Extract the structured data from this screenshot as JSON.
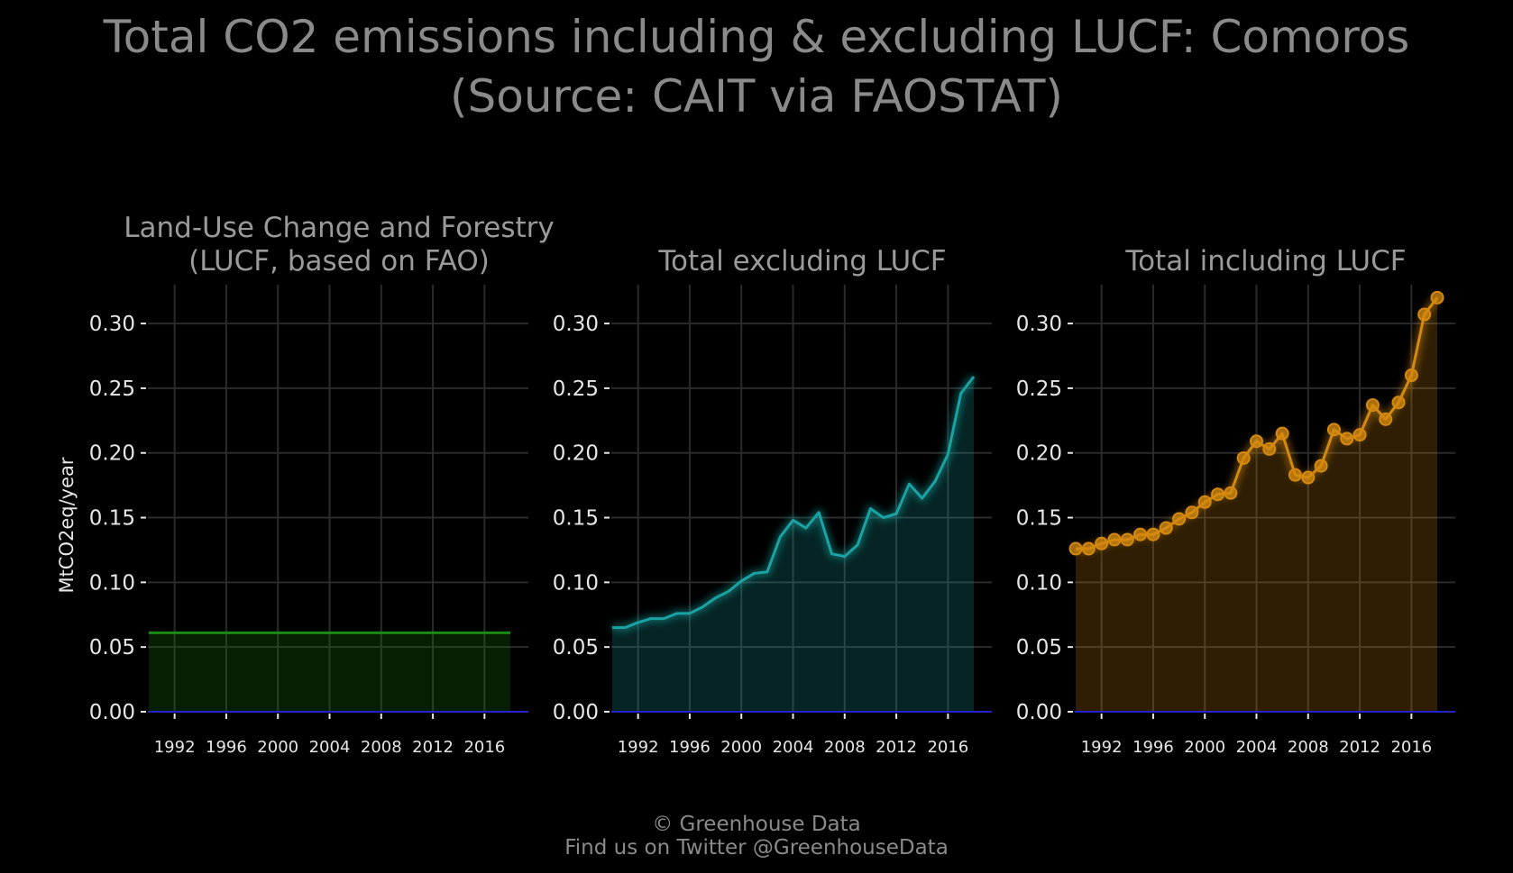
{
  "title": {
    "line1": "Total CO2 emissions including & excluding LUCF: Comoros",
    "line2": "(Source: CAIT via FAOSTAT)"
  },
  "footer": {
    "line1": "© Greenhouse Data",
    "line2": "Find us on Twitter @GreenhouseData"
  },
  "colors": {
    "background": "#000000",
    "lucf": "#1a8a12",
    "excl": "#1aa3a3",
    "incl": "#d4890f",
    "zero_line": "#2323c8"
  },
  "chart_data": [
    {
      "type": "area",
      "title_line1": "Land-Use Change and Forestry",
      "title_line2": "(LUCF, based on FAO)",
      "ylabel": "MtCO2eq/year",
      "ylim": [
        0,
        0.33
      ],
      "xlim": [
        1990,
        2018
      ],
      "yticks": [
        "0.00",
        "0.05",
        "0.10",
        "0.15",
        "0.20",
        "0.25",
        "0.30"
      ],
      "xticks": [
        "1992",
        "1996",
        "2000",
        "2004",
        "2008",
        "2012",
        "2016"
      ],
      "grid": true,
      "color": "#1a8a12",
      "markers": false,
      "x": [
        1990,
        1991,
        1992,
        1993,
        1994,
        1995,
        1996,
        1997,
        1998,
        1999,
        2000,
        2001,
        2002,
        2003,
        2004,
        2005,
        2006,
        2007,
        2008,
        2009,
        2010,
        2011,
        2012,
        2013,
        2014,
        2015,
        2016,
        2017,
        2018
      ],
      "values": [
        0.061,
        0.061,
        0.061,
        0.061,
        0.061,
        0.061,
        0.061,
        0.061,
        0.061,
        0.061,
        0.061,
        0.061,
        0.061,
        0.061,
        0.061,
        0.061,
        0.061,
        0.061,
        0.061,
        0.061,
        0.061,
        0.061,
        0.061,
        0.061,
        0.061,
        0.061,
        0.061,
        0.061,
        0.061
      ]
    },
    {
      "type": "area",
      "title_line1": "",
      "title_line2": "Total excluding LUCF",
      "ylabel": "",
      "ylim": [
        0,
        0.33
      ],
      "xlim": [
        1990,
        2018
      ],
      "yticks": [
        "0.00",
        "0.05",
        "0.10",
        "0.15",
        "0.20",
        "0.25",
        "0.30"
      ],
      "xticks": [
        "1992",
        "1996",
        "2000",
        "2004",
        "2008",
        "2012",
        "2016"
      ],
      "grid": true,
      "color": "#1aa3a3",
      "markers": false,
      "x": [
        1990,
        1991,
        1992,
        1993,
        1994,
        1995,
        1996,
        1997,
        1998,
        1999,
        2000,
        2001,
        2002,
        2003,
        2004,
        2005,
        2006,
        2007,
        2008,
        2009,
        2010,
        2011,
        2012,
        2013,
        2014,
        2015,
        2016,
        2017,
        2018
      ],
      "values": [
        0.065,
        0.065,
        0.069,
        0.072,
        0.072,
        0.076,
        0.076,
        0.081,
        0.088,
        0.093,
        0.101,
        0.107,
        0.108,
        0.135,
        0.148,
        0.142,
        0.154,
        0.122,
        0.12,
        0.129,
        0.157,
        0.15,
        0.153,
        0.176,
        0.165,
        0.178,
        0.199,
        0.246,
        0.259
      ]
    },
    {
      "type": "area",
      "title_line1": "",
      "title_line2": "Total including LUCF",
      "ylabel": "",
      "ylim": [
        0,
        0.33
      ],
      "xlim": [
        1990,
        2018
      ],
      "yticks": [
        "0.00",
        "0.05",
        "0.10",
        "0.15",
        "0.20",
        "0.25",
        "0.30"
      ],
      "xticks": [
        "1992",
        "1996",
        "2000",
        "2004",
        "2008",
        "2012",
        "2016"
      ],
      "grid": true,
      "color": "#d4890f",
      "markers": true,
      "x": [
        1990,
        1991,
        1992,
        1993,
        1994,
        1995,
        1996,
        1997,
        1998,
        1999,
        2000,
        2001,
        2002,
        2003,
        2004,
        2005,
        2006,
        2007,
        2008,
        2009,
        2010,
        2011,
        2012,
        2013,
        2014,
        2015,
        2016,
        2017,
        2018
      ],
      "values": [
        0.126,
        0.126,
        0.13,
        0.133,
        0.133,
        0.137,
        0.137,
        0.142,
        0.149,
        0.154,
        0.162,
        0.168,
        0.169,
        0.196,
        0.209,
        0.203,
        0.215,
        0.183,
        0.181,
        0.19,
        0.218,
        0.211,
        0.214,
        0.237,
        0.226,
        0.239,
        0.26,
        0.307,
        0.32
      ]
    }
  ]
}
